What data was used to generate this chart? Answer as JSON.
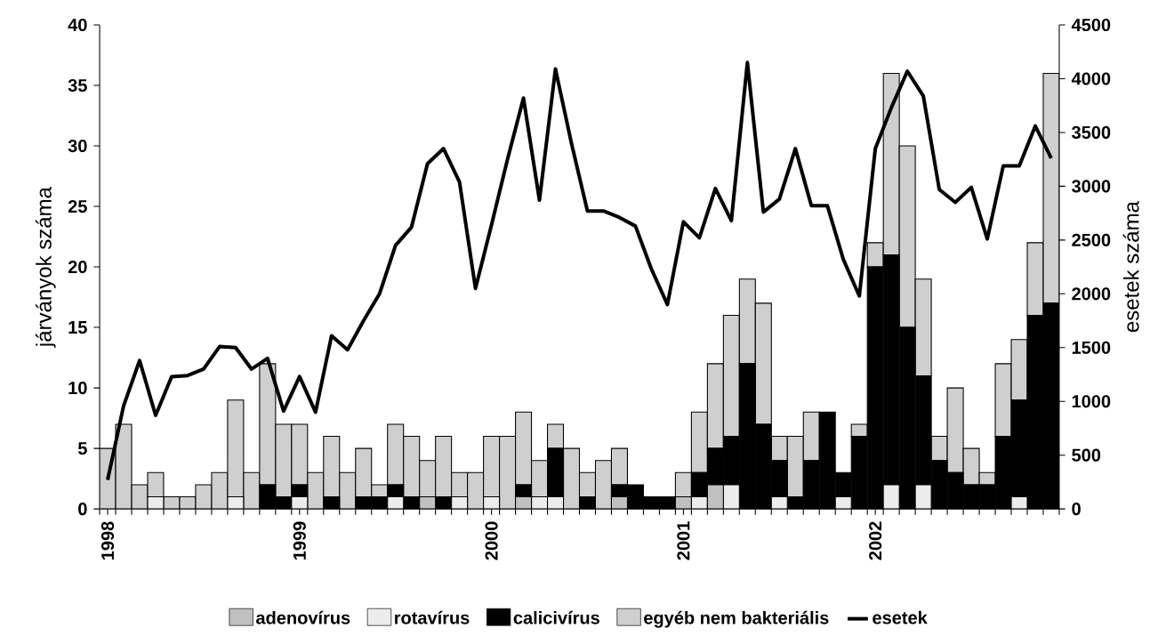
{
  "chart_data": {
    "type": "bar",
    "stacked": true,
    "ylabel": "járványok száma",
    "y2label": "esetek száma",
    "categories": [
      "1998",
      null,
      null,
      null,
      null,
      null,
      null,
      null,
      null,
      null,
      null,
      null,
      "1999",
      null,
      null,
      null,
      null,
      null,
      null,
      null,
      null,
      null,
      null,
      null,
      "2000",
      null,
      null,
      null,
      null,
      null,
      null,
      null,
      null,
      null,
      null,
      null,
      "2001",
      null,
      null,
      null,
      null,
      null,
      null,
      null,
      null,
      null,
      null,
      null,
      "2002",
      null,
      null,
      null,
      null,
      null,
      null,
      null,
      null,
      null,
      null,
      null
    ],
    "ylim": [
      0,
      40
    ],
    "yticks": [
      0,
      5,
      10,
      15,
      20,
      25,
      30,
      35,
      40
    ],
    "y2lim": [
      0,
      4500
    ],
    "y2ticks": [
      0,
      500,
      1000,
      1500,
      2000,
      2500,
      3000,
      3500,
      4000,
      4500
    ],
    "legend": "bottom",
    "series": [
      {
        "name": "adenovírus",
        "color": "#c0c0c0",
        "values": [
          0,
          0,
          0,
          0,
          0,
          0,
          0,
          0,
          0,
          0,
          0,
          0,
          0,
          0,
          0,
          0,
          0,
          0,
          0,
          0,
          1,
          0,
          0,
          0,
          0,
          0,
          1,
          0,
          0,
          0,
          0,
          0,
          1,
          0,
          0,
          0,
          1,
          0,
          2,
          0,
          0,
          0,
          0,
          0,
          0,
          0,
          0,
          0,
          0,
          0,
          0,
          0,
          0,
          0,
          0,
          0,
          0,
          0,
          0,
          0
        ]
      },
      {
        "name": "rotavírus",
        "color": "#ececec",
        "values": [
          0,
          0,
          0,
          1,
          0,
          0,
          0,
          0,
          1,
          0,
          0,
          0,
          1,
          0,
          0,
          0,
          0,
          0,
          1,
          0,
          0,
          0,
          1,
          0,
          1,
          0,
          0,
          1,
          1,
          0,
          0,
          0,
          0,
          0,
          0,
          0,
          0,
          1,
          0,
          2,
          0,
          0,
          1,
          0,
          0,
          0,
          1,
          0,
          0,
          2,
          0,
          2,
          0,
          0,
          0,
          0,
          0,
          1,
          0,
          0
        ]
      },
      {
        "name": "calicivírus",
        "color": "#000000",
        "values": [
          0,
          0,
          0,
          0,
          0,
          0,
          0,
          0,
          0,
          0,
          2,
          1,
          1,
          0,
          1,
          0,
          1,
          1,
          1,
          1,
          0,
          1,
          0,
          0,
          0,
          0,
          1,
          0,
          4,
          0,
          1,
          0,
          1,
          2,
          1,
          1,
          0,
          2,
          3,
          4,
          12,
          7,
          3,
          1,
          4,
          8,
          2,
          6,
          20,
          19,
          15,
          9,
          4,
          3,
          2,
          2,
          6,
          8,
          16,
          17
        ]
      },
      {
        "name": "egyéb nem bakteriális",
        "color": "#cfcfcf",
        "values": [
          5,
          7,
          2,
          2,
          1,
          1,
          2,
          3,
          8,
          3,
          10,
          6,
          5,
          3,
          5,
          3,
          4,
          1,
          5,
          5,
          3,
          5,
          2,
          3,
          5,
          6,
          6,
          3,
          2,
          5,
          2,
          4,
          3,
          0,
          0,
          0,
          2,
          5,
          7,
          10,
          7,
          10,
          2,
          5,
          4,
          0,
          0,
          1,
          2,
          15,
          15,
          8,
          2,
          7,
          3,
          1,
          6,
          5,
          6,
          19
        ]
      },
      {
        "name": "esetek",
        "type": "line",
        "axis": "y2",
        "color": "#000000",
        "values": [
          270,
          960,
          1380,
          870,
          1230,
          1240,
          1300,
          1510,
          1500,
          1300,
          1400,
          910,
          1230,
          900,
          1610,
          1480,
          1750,
          2000,
          2450,
          2620,
          3210,
          3350,
          3040,
          2050,
          2640,
          3250,
          3820,
          2870,
          4090,
          3400,
          2770,
          2770,
          2710,
          2630,
          2230,
          1900,
          2670,
          2520,
          2980,
          2680,
          4150,
          2760,
          2880,
          3350,
          2820,
          2820,
          2320,
          1980,
          3350,
          3730,
          4070,
          3840,
          2970,
          2850,
          2990,
          2510,
          3190,
          3190,
          3560,
          3260
        ]
      }
    ]
  }
}
